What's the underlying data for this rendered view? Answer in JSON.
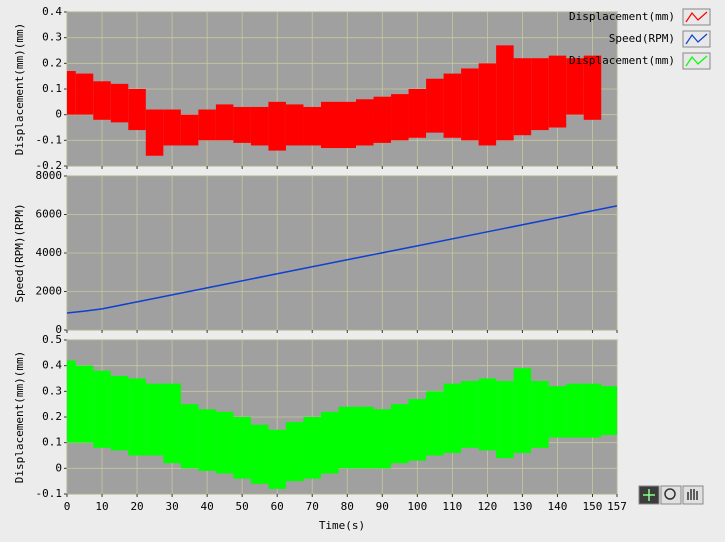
{
  "chart_data": [
    {
      "type": "band",
      "ylabel": "Displacement(mm)(mm)",
      "grid": true,
      "xlim": [
        0,
        157
      ],
      "xticks": [
        0,
        10,
        20,
        30,
        40,
        50,
        60,
        70,
        80,
        90,
        100,
        110,
        120,
        130,
        140,
        150,
        157
      ],
      "ylim": [
        -0.2,
        0.4
      ],
      "yticks": [
        -0.2,
        -0.1,
        0,
        0.1,
        0.2,
        0.3,
        0.4
      ],
      "series": [
        {
          "name": "Displacement(mm)",
          "color": "#ff0000",
          "x": [
            0,
            5,
            10,
            15,
            20,
            25,
            30,
            35,
            40,
            45,
            50,
            55,
            60,
            65,
            70,
            75,
            80,
            85,
            90,
            95,
            100,
            105,
            110,
            115,
            120,
            125,
            130,
            135,
            140,
            145,
            150
          ],
          "max": [
            0.17,
            0.16,
            0.13,
            0.12,
            0.1,
            0.02,
            0.02,
            0.0,
            0.02,
            0.04,
            0.03,
            0.03,
            0.05,
            0.04,
            0.03,
            0.05,
            0.05,
            0.06,
            0.07,
            0.08,
            0.1,
            0.14,
            0.16,
            0.18,
            0.2,
            0.27,
            0.22,
            0.22,
            0.23,
            0.22,
            0.23
          ],
          "min": [
            0.0,
            0.0,
            -0.02,
            -0.03,
            -0.06,
            -0.16,
            -0.12,
            -0.12,
            -0.1,
            -0.1,
            -0.11,
            -0.12,
            -0.14,
            -0.12,
            -0.12,
            -0.13,
            -0.13,
            -0.12,
            -0.11,
            -0.1,
            -0.09,
            -0.07,
            -0.09,
            -0.1,
            -0.12,
            -0.1,
            -0.08,
            -0.06,
            -0.05,
            0.0,
            -0.02
          ]
        }
      ]
    },
    {
      "type": "line",
      "ylabel": "Speed(RPM)(RPM)",
      "grid": true,
      "xlim": [
        0,
        157
      ],
      "xticks": [
        0,
        10,
        20,
        30,
        40,
        50,
        60,
        70,
        80,
        90,
        100,
        110,
        120,
        130,
        140,
        150,
        157
      ],
      "ylim": [
        0,
        8000
      ],
      "yticks": [
        0,
        2000,
        4000,
        6000,
        8000
      ],
      "series": [
        {
          "name": "Speed(RPM)",
          "color": "#1040d0",
          "x": [
            0,
            5,
            10,
            20,
            40,
            60,
            80,
            100,
            120,
            140,
            157
          ],
          "values": [
            880,
            980,
            1100,
            1460,
            2190,
            2920,
            3650,
            4370,
            5100,
            5830,
            6450
          ]
        }
      ]
    },
    {
      "type": "band",
      "ylabel": "Displacement(mm)(mm)",
      "xlabel": "Time(s)",
      "grid": true,
      "xlim": [
        0,
        157
      ],
      "xticks": [
        0,
        10,
        20,
        30,
        40,
        50,
        60,
        70,
        80,
        90,
        100,
        110,
        120,
        130,
        140,
        150,
        157
      ],
      "ylim": [
        -0.1,
        0.5
      ],
      "yticks": [
        -0.1,
        0,
        0.1,
        0.2,
        0.3,
        0.4,
        0.5
      ],
      "series": [
        {
          "name": "Displacement(mm)",
          "color": "#00ff00",
          "x": [
            0,
            5,
            10,
            15,
            20,
            25,
            30,
            35,
            40,
            45,
            50,
            55,
            60,
            65,
            70,
            75,
            80,
            85,
            90,
            95,
            100,
            105,
            110,
            115,
            120,
            125,
            130,
            135,
            140,
            145,
            150,
            155
          ],
          "max": [
            0.42,
            0.4,
            0.38,
            0.36,
            0.35,
            0.33,
            0.33,
            0.25,
            0.23,
            0.22,
            0.2,
            0.17,
            0.15,
            0.18,
            0.2,
            0.22,
            0.24,
            0.24,
            0.23,
            0.25,
            0.27,
            0.3,
            0.33,
            0.34,
            0.35,
            0.34,
            0.39,
            0.34,
            0.32,
            0.33,
            0.33,
            0.32
          ],
          "min": [
            0.1,
            0.1,
            0.08,
            0.07,
            0.05,
            0.05,
            0.02,
            0.0,
            -0.01,
            -0.02,
            -0.04,
            -0.06,
            -0.08,
            -0.05,
            -0.04,
            -0.02,
            0.0,
            0.0,
            0.0,
            0.02,
            0.03,
            0.05,
            0.06,
            0.08,
            0.07,
            0.04,
            0.06,
            0.08,
            0.12,
            0.12,
            0.12,
            0.13
          ]
        }
      ]
    }
  ]
}
